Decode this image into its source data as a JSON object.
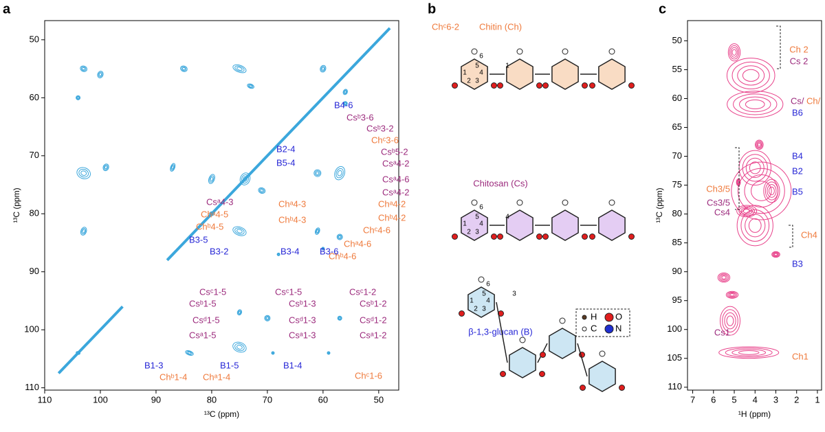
{
  "panel_a": {
    "letter": "a",
    "x_label": "¹³C (ppm)",
    "y_label": "¹³C (ppm)",
    "xlim": [
      110,
      46.4
    ],
    "ylim": [
      46.7,
      110.4
    ],
    "xticks": [
      110,
      100,
      90,
      80,
      70,
      60,
      50
    ],
    "yticks": [
      50,
      60,
      70,
      80,
      90,
      100,
      110
    ],
    "contour_color": "#3ba7dc",
    "annotations": [
      {
        "text": "Chᶜ6-2",
        "color": "#ef7a3c"
      },
      {
        "text": "B4-6",
        "color": "#2626d6"
      },
      {
        "text": "Csᵇ3-6",
        "color": "#9c2b7d"
      },
      {
        "text": "Csᵇ3-2",
        "color": "#9c2b7d"
      },
      {
        "text": "Chᶜ3-6",
        "color": "#ef7a3c"
      },
      {
        "text": "Csᵇ5-2",
        "color": "#9c2b7d"
      },
      {
        "text": "Csᵃ4-2",
        "color": "#9c2b7d"
      },
      {
        "text": "Csᵃ4-6",
        "color": "#9c2b7d"
      },
      {
        "text": "Csᵃ4-2",
        "color": "#9c2b7d"
      },
      {
        "text": "B2-4",
        "color": "#2626d6"
      },
      {
        "text": "B5-4",
        "color": "#2626d6"
      },
      {
        "text": "Csᵃ4-3",
        "color": "#9c2b7d"
      },
      {
        "text": "Chᵃ4-3",
        "color": "#ef7a3c"
      },
      {
        "text": "Chᵃ4-5",
        "color": "#ef7a3c"
      },
      {
        "text": "Chᵇ4-3",
        "color": "#ef7a3c"
      },
      {
        "text": "Chᵇ4-5",
        "color": "#ef7a3c"
      },
      {
        "text": "Chᵃ4-2",
        "color": "#ef7a3c"
      },
      {
        "text": "Chᵇ4-2",
        "color": "#ef7a3c"
      },
      {
        "text": "Chᶜ4-6",
        "color": "#ef7a3c"
      },
      {
        "text": "Chᵃ4-6",
        "color": "#ef7a3c"
      },
      {
        "text": "Chᵇ4-6",
        "color": "#ef7a3c"
      },
      {
        "text": "B3-5",
        "color": "#2626d6"
      },
      {
        "text": "B3-2",
        "color": "#2626d6"
      },
      {
        "text": "B3-4",
        "color": "#2626d6"
      },
      {
        "text": "B3-6",
        "color": "#2626d6"
      },
      {
        "text": "Csᶜ1-5",
        "color": "#9c2b7d"
      },
      {
        "text": "Csᵇ1-5",
        "color": "#9c2b7d"
      },
      {
        "text": "Csᵈ1-5",
        "color": "#9c2b7d"
      },
      {
        "text": "Csᵃ1-5",
        "color": "#9c2b7d"
      },
      {
        "text": "Csᶜ1-5",
        "color": "#9c2b7d"
      },
      {
        "text": "Csᵇ1-3",
        "color": "#9c2b7d"
      },
      {
        "text": "Csᵈ1-3",
        "color": "#9c2b7d"
      },
      {
        "text": "Csᵃ1-3",
        "color": "#9c2b7d"
      },
      {
        "text": "Csᶜ1-2",
        "color": "#9c2b7d"
      },
      {
        "text": "Csᵇ1-2",
        "color": "#9c2b7d"
      },
      {
        "text": "Csᵈ1-2",
        "color": "#9c2b7d"
      },
      {
        "text": "Csᵃ1-2",
        "color": "#9c2b7d"
      },
      {
        "text": "B1-3",
        "color": "#2626d6"
      },
      {
        "text": "B1-5",
        "color": "#2626d6"
      },
      {
        "text": "B1-4",
        "color": "#2626d6"
      },
      {
        "text": "Chᵇ1-4",
        "color": "#ef7a3c"
      },
      {
        "text": "Chᵃ1-4",
        "color": "#ef7a3c"
      },
      {
        "text": "Chᶜ1-6",
        "color": "#ef7a3c"
      }
    ]
  },
  "panel_b": {
    "letter": "b",
    "structures": [
      {
        "title": "Chitin (Ch)",
        "color": "#ef7a3c",
        "ring_fill": "#f9dcc4",
        "numbers": [
          "1",
          "2",
          "3",
          "4",
          "5",
          "6",
          "1"
        ]
      },
      {
        "title": "Chitosan (Cs)",
        "color": "#9c2b7d",
        "ring_fill": "#e4cdf3",
        "numbers": [
          "1",
          "2",
          "3",
          "4",
          "5",
          "6",
          "4"
        ]
      },
      {
        "title": "β-1,3-glucan (B)",
        "color": "#2626d6",
        "ring_fill": "#cde6f3",
        "numbers": [
          "1",
          "2",
          "3",
          "4",
          "5",
          "6",
          "3"
        ]
      }
    ],
    "legend": [
      {
        "label": "H",
        "color": "#5a3a22"
      },
      {
        "label": "O",
        "color": "#e01e1e"
      },
      {
        "label": "C",
        "color": "#ffffff"
      },
      {
        "label": "N",
        "color": "#1f2fd0"
      }
    ]
  },
  "panel_c": {
    "letter": "c",
    "x_label": "¹H (ppm)",
    "y_label": "¹³C (ppm)",
    "xlim": [
      7.25,
      0.8
    ],
    "ylim": [
      46.5,
      110.5
    ],
    "xticks": [
      7,
      6,
      5,
      4,
      3,
      2,
      1
    ],
    "yticks": [
      50,
      55,
      60,
      65,
      70,
      75,
      80,
      85,
      90,
      95,
      100,
      105,
      110
    ],
    "contour_color": "#e8418a",
    "annotations": [
      {
        "text": "Ch 2",
        "color": "#ef7a3c"
      },
      {
        "text": "Cs 2",
        "color": "#9c2b7d"
      },
      {
        "text": "Cs/",
        "color": "#9c2b7d"
      },
      {
        "text": "Ch/",
        "color": "#ef7a3c"
      },
      {
        "text": "B6",
        "color": "#2626d6"
      },
      {
        "text": "B4",
        "color": "#2626d6"
      },
      {
        "text": "Ch3/5",
        "color": "#ef7a3c"
      },
      {
        "text": "Cs3/5",
        "color": "#9c2b7d"
      },
      {
        "text": "B2",
        "color": "#2626d6"
      },
      {
        "text": "B5",
        "color": "#2626d6"
      },
      {
        "text": "Cs4",
        "color": "#9c2b7d"
      },
      {
        "text": "Ch4",
        "color": "#ef7a3c"
      },
      {
        "text": "B3",
        "color": "#2626d6"
      },
      {
        "text": "Cs1",
        "color": "#9c2b7d"
      },
      {
        "text": "Ch1",
        "color": "#ef7a3c"
      }
    ]
  }
}
